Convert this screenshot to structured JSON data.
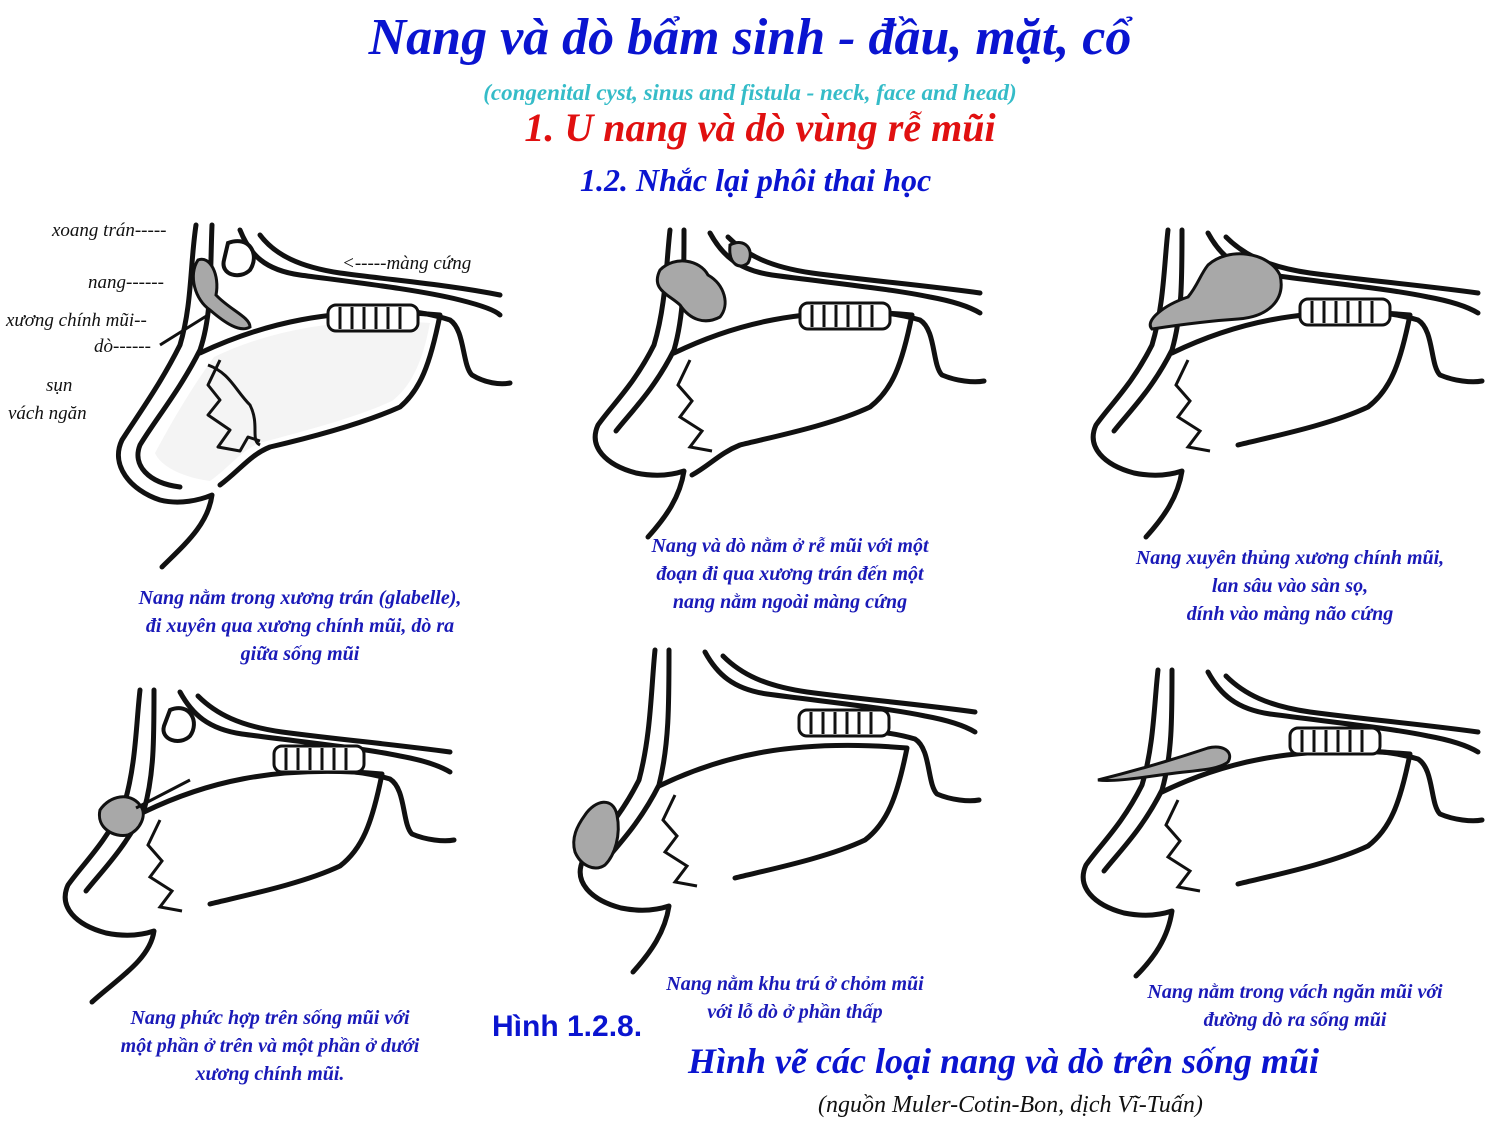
{
  "header": {
    "title": "Nang và dò bẩm sinh - đầu, mặt, cổ",
    "subtitle": "(congenital cyst, sinus and fistula - neck, face and head)",
    "section": "1. U nang và dò vùng rễ mũi",
    "subsection": "1.2. Nhắc lại phôi thai học"
  },
  "labels": {
    "xoang_tran": "xoang trán-----",
    "nang": "nang------",
    "xuong_chinh_mui": "xương chính mũi--",
    "do": "dò------",
    "sun": "sụn",
    "vach_ngan": "vách ngăn",
    "mang_cung": "<-----màng cứng"
  },
  "captions": [
    {
      "lines": [
        "Nang nằm trong xương trán (glabelle),",
        "đi xuyên qua xương chính mũi, dò ra",
        "giữa sống mũi"
      ]
    },
    {
      "lines": [
        "Nang và dò nằm ở rễ mũi với một",
        "đoạn đi qua xương trán đến một",
        "nang nằm ngoài màng cứng"
      ]
    },
    {
      "lines": [
        "Nang xuyên thủng xương chính mũi,",
        "lan sâu vào sàn sọ,",
        "dính vào màng não cứng"
      ]
    },
    {
      "lines": [
        "Nang phức hợp trên sống mũi với",
        "một phần ở trên và một phần ở dưới",
        "xương chính mũi."
      ]
    },
    {
      "lines": [
        "Nang nằm khu trú ở chỏm mũi",
        "với lỗ dò ở phần thấp"
      ]
    },
    {
      "lines": [
        "Nang nằm trong vách ngăn mũi với",
        "đường dò ra sống mũi"
      ]
    }
  ],
  "figure": {
    "number": "Hình 1.2.8.",
    "title": "Hình vẽ các loại nang và dò trên sống mũi",
    "source": "(nguồn Muler-Cotin-Bon, dịch Vĩ-Tuấn)"
  },
  "colors": {
    "title": "#0a14d0",
    "subtitle": "#35bcc8",
    "section": "#e01010",
    "caption": "#1a1ab8",
    "cyst_fill": "#a8a8a8"
  }
}
